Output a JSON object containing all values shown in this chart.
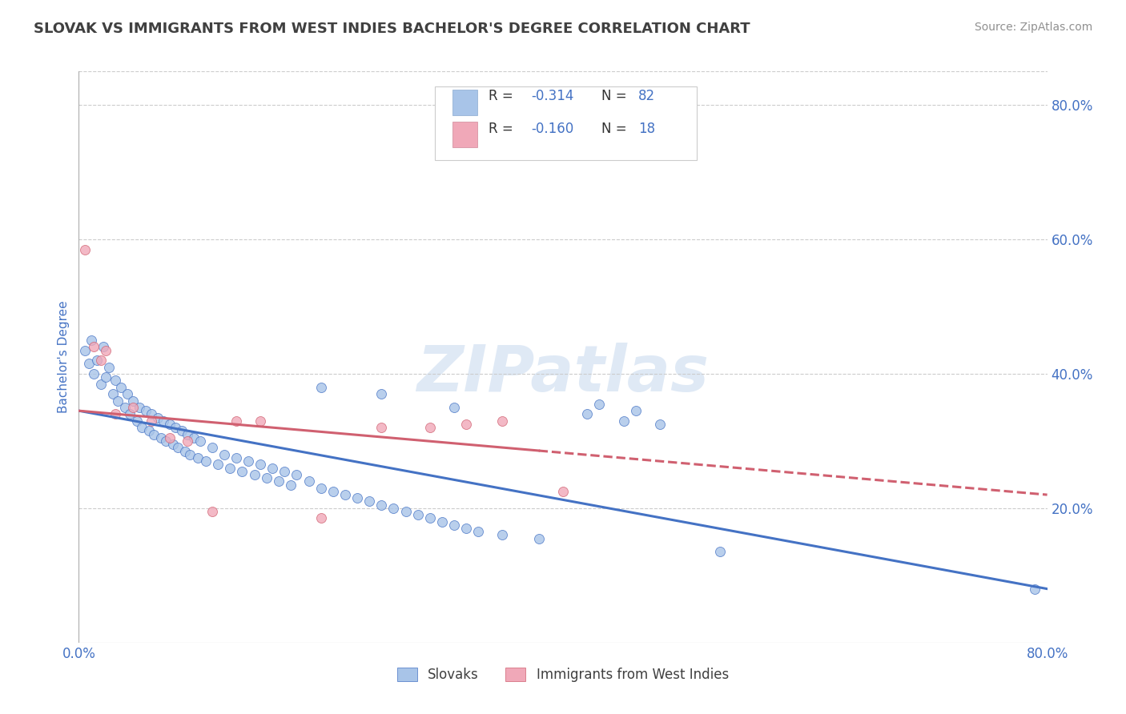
{
  "title": "SLOVAK VS IMMIGRANTS FROM WEST INDIES BACHELOR'S DEGREE CORRELATION CHART",
  "source_text": "Source: ZipAtlas.com",
  "ylabel": "Bachelor's Degree",
  "watermark": "ZIPatlas",
  "xlim": [
    0.0,
    0.8
  ],
  "ylim": [
    0.0,
    0.85
  ],
  "yticks": [
    0.2,
    0.4,
    0.6,
    0.8
  ],
  "ytick_labels": [
    "20.0%",
    "40.0%",
    "60.0%",
    "80.0%"
  ],
  "color_slovaks": "#a8c4e8",
  "color_west_indies": "#f0a8b8",
  "line_color_slovaks": "#4472c4",
  "line_color_west_indies": "#d06070",
  "grid_color": "#cccccc",
  "background_color": "#ffffff",
  "title_color": "#404040",
  "source_color": "#909090",
  "axis_label_color": "#4472c4",
  "scatter_slovaks_x": [
    0.005,
    0.008,
    0.01,
    0.012,
    0.015,
    0.018,
    0.02,
    0.022,
    0.025,
    0.028,
    0.03,
    0.032,
    0.035,
    0.038,
    0.04,
    0.042,
    0.045,
    0.048,
    0.05,
    0.052,
    0.055,
    0.058,
    0.06,
    0.062,
    0.065,
    0.068,
    0.07,
    0.072,
    0.075,
    0.078,
    0.08,
    0.082,
    0.085,
    0.088,
    0.09,
    0.092,
    0.095,
    0.098,
    0.1,
    0.105,
    0.11,
    0.115,
    0.12,
    0.125,
    0.13,
    0.135,
    0.14,
    0.145,
    0.15,
    0.155,
    0.16,
    0.165,
    0.17,
    0.175,
    0.18,
    0.19,
    0.2,
    0.21,
    0.22,
    0.23,
    0.24,
    0.25,
    0.26,
    0.27,
    0.28,
    0.29,
    0.3,
    0.31,
    0.32,
    0.33,
    0.35,
    0.38,
    0.2,
    0.25,
    0.31,
    0.42,
    0.43,
    0.45,
    0.46,
    0.48,
    0.53,
    0.79
  ],
  "scatter_slovaks_y": [
    0.435,
    0.415,
    0.45,
    0.4,
    0.42,
    0.385,
    0.44,
    0.395,
    0.41,
    0.37,
    0.39,
    0.36,
    0.38,
    0.35,
    0.37,
    0.34,
    0.36,
    0.33,
    0.35,
    0.32,
    0.345,
    0.315,
    0.34,
    0.31,
    0.335,
    0.305,
    0.33,
    0.3,
    0.325,
    0.295,
    0.32,
    0.29,
    0.315,
    0.285,
    0.31,
    0.28,
    0.305,
    0.275,
    0.3,
    0.27,
    0.29,
    0.265,
    0.28,
    0.26,
    0.275,
    0.255,
    0.27,
    0.25,
    0.265,
    0.245,
    0.26,
    0.24,
    0.255,
    0.235,
    0.25,
    0.24,
    0.23,
    0.225,
    0.22,
    0.215,
    0.21,
    0.205,
    0.2,
    0.195,
    0.19,
    0.185,
    0.18,
    0.175,
    0.17,
    0.165,
    0.16,
    0.155,
    0.38,
    0.37,
    0.35,
    0.34,
    0.355,
    0.33,
    0.345,
    0.325,
    0.135,
    0.08
  ],
  "scatter_west_indies_x": [
    0.005,
    0.012,
    0.018,
    0.022,
    0.03,
    0.045,
    0.06,
    0.075,
    0.09,
    0.11,
    0.13,
    0.15,
    0.2,
    0.25,
    0.29,
    0.32,
    0.35,
    0.4
  ],
  "scatter_west_indies_y": [
    0.585,
    0.44,
    0.42,
    0.435,
    0.34,
    0.35,
    0.33,
    0.305,
    0.3,
    0.195,
    0.33,
    0.33,
    0.185,
    0.32,
    0.32,
    0.325,
    0.33,
    0.225
  ],
  "line1_x0": 0.0,
  "line1_y0": 0.345,
  "line1_x1": 0.8,
  "line1_y1": 0.08,
  "line2_x0": 0.0,
  "line2_y0": 0.345,
  "line2_x1": 0.8,
  "line2_y1": 0.22,
  "line2_solid_end": 0.38
}
